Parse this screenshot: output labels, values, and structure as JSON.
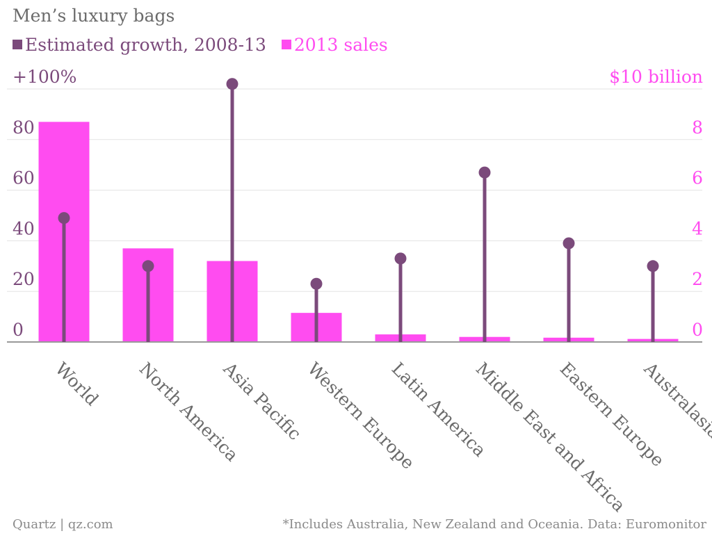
{
  "header": {
    "title": "Men’s luxury bags"
  },
  "legend": [
    {
      "label": "Estimated growth, 2008-13",
      "color": "#7b4a7b"
    },
    {
      "label": "2013 sales",
      "color": "#ff4cf0"
    }
  ],
  "footer": {
    "source_left": "Quartz | qz.com",
    "note_right": "*Includes Australia, New Zealand and Oceania. Data: Euromonitor"
  },
  "chart_data": {
    "type": "bar",
    "categories": [
      "World",
      "North America",
      "Asia Pacific",
      "Western Europe",
      "Latin America",
      "Middle East and Africa",
      "Eastern Europe",
      "Australasia*"
    ],
    "series": [
      {
        "name": "Estimated growth, 2008-13",
        "mark": "lollipop",
        "axis": "left",
        "color": "#7b4a7b",
        "values": [
          49,
          30,
          102,
          23,
          33,
          67,
          39,
          30
        ]
      },
      {
        "name": "2013 sales",
        "mark": "bar",
        "axis": "right",
        "color": "#ff4cf0",
        "values": [
          8.7,
          3.7,
          3.2,
          1.15,
          0.3,
          0.2,
          0.17,
          0.12
        ]
      }
    ],
    "y_left": {
      "ylim": [
        0,
        100
      ],
      "ticks": [
        0,
        20,
        40,
        60,
        80,
        100
      ],
      "tick_labels": [
        "0",
        "20",
        "40",
        "60",
        "80",
        "+100%"
      ],
      "color": "#7b4a7b"
    },
    "y_right": {
      "ylim": [
        0,
        10
      ],
      "ticks": [
        0,
        2,
        4,
        6,
        8,
        10
      ],
      "tick_labels": [
        "0",
        "2",
        "4",
        "6",
        "8",
        "$10 billion"
      ],
      "color": "#ff4cf0"
    },
    "grid": true,
    "legend_position": "top-left"
  }
}
